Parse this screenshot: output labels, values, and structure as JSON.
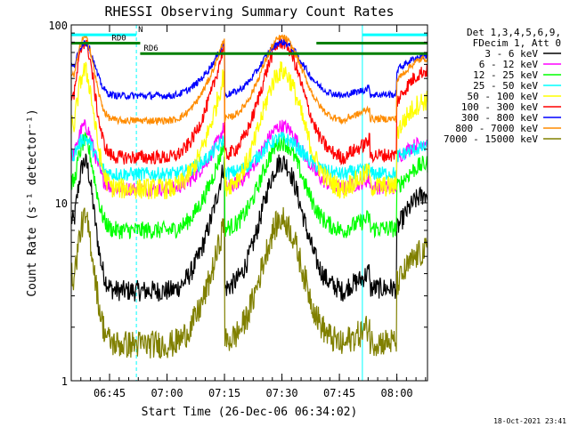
{
  "chart_data": {
    "type": "line",
    "title": "RHESSI Observing Summary Count Rates",
    "xlabel": "Start Time (26-Dec-06 06:34:02)",
    "ylabel": "Count Rate (s⁻¹ detector⁻¹)",
    "yscale": "log",
    "ylim": [
      1,
      100
    ],
    "xlim": [
      0,
      93
    ],
    "x_unit": "minutes after 06:34:02",
    "x_ticks": [
      {
        "x": 10,
        "label": "06:45"
      },
      {
        "x": 25,
        "label": "07:00"
      },
      {
        "x": 40,
        "label": "07:15"
      },
      {
        "x": 55,
        "label": "07:30"
      },
      {
        "x": 70,
        "label": "07:45"
      },
      {
        "x": 85,
        "label": "08:00"
      }
    ],
    "y_ticks": [
      {
        "y": 1,
        "label": "1"
      },
      {
        "y": 10,
        "label": "10"
      },
      {
        "y": 100,
        "label": "100"
      }
    ],
    "legend_header": [
      "Det 1,3,4,5,6,9,",
      "FDecim 1, Att 0"
    ],
    "legend_position": "right",
    "series": [
      {
        "name": "3 - 6 keV",
        "color": "#000000",
        "dip": 3.2,
        "peak": 17,
        "noise": 0.06
      },
      {
        "name": "6 - 12 keV",
        "color": "#ff00ff",
        "dip": 12,
        "peak": 27,
        "noise": 0.04
      },
      {
        "name": "12 - 25 keV",
        "color": "#00ff00",
        "dip": 7,
        "peak": 22,
        "noise": 0.05
      },
      {
        "name": "25 - 50 keV",
        "color": "#00ffff",
        "dip": 14.5,
        "peak": 23,
        "noise": 0.04
      },
      {
        "name": "50 - 100 keV",
        "color": "#ffff00",
        "dip": 12,
        "peak": 55,
        "noise": 0.06
      },
      {
        "name": "100 - 300 keV",
        "color": "#ff0000",
        "dip": 18,
        "peak": 80,
        "noise": 0.04
      },
      {
        "name": "300 - 800 keV",
        "color": "#0000ff",
        "dip": 40,
        "peak": 80,
        "noise": 0.02
      },
      {
        "name": "800 - 7000 keV",
        "color": "#ff8c00",
        "dip": 29,
        "peak": 85,
        "noise": 0.02
      },
      {
        "name": "7000 - 15000 keV",
        "color": "#808000",
        "dip": 1.6,
        "peak": 8,
        "noise": 0.08
      }
    ],
    "annotations": [
      {
        "label": "N",
        "color": "#00ffff",
        "y": 88,
        "segments": [
          [
            0,
            17
          ],
          [
            76,
            93
          ]
        ]
      },
      {
        "label": "RD0",
        "color": "#008000",
        "y": 79,
        "segments": [
          [
            0,
            18
          ],
          [
            64,
            93
          ]
        ]
      },
      {
        "label": "RD6",
        "color": "#008000",
        "y": 69,
        "segments": [
          [
            18,
            93
          ]
        ]
      }
    ],
    "vertical_markers": [
      {
        "x": 17,
        "color": "#00ffff",
        "style": "dashed"
      },
      {
        "x": 76,
        "color": "#00ffff",
        "style": "solid"
      },
      {
        "x": 93,
        "color": "#00ffff",
        "style": "dashed"
      }
    ]
  },
  "footer_timestamp": "18-Oct-2021 23:41"
}
